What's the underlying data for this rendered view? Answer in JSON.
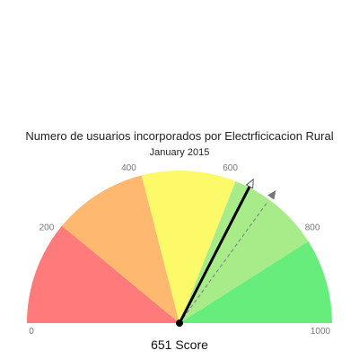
{
  "chart_data": {
    "type": "gauge",
    "title": "Numero de usuarios incorporados por Electrficicacion Rural",
    "subtitle": "January 2015",
    "min": 0,
    "max": 1000,
    "value": 651,
    "value_label": "651 Score",
    "target": 700,
    "tick_labels": [
      {
        "value": 0,
        "label": "0"
      },
      {
        "value": 200,
        "label": "200"
      },
      {
        "value": 400,
        "label": "400"
      },
      {
        "value": 600,
        "label": "600"
      },
      {
        "value": 800,
        "label": "800"
      },
      {
        "value": 1000,
        "label": "1000"
      }
    ],
    "bands": [
      {
        "from": 0,
        "to": 220,
        "color": "#ff7b7b"
      },
      {
        "from": 220,
        "to": 420,
        "color": "#ffb870"
      },
      {
        "from": 420,
        "to": 620,
        "color": "#fdfa6a"
      },
      {
        "from": 620,
        "to": 820,
        "color": "#a8ec8a"
      },
      {
        "from": 820,
        "to": 1000,
        "color": "#66ed7c"
      }
    ],
    "colors": {
      "needle": "#000000",
      "target_line": "#888888",
      "target_marker": "#777777",
      "value_marker_fill": "#ffffff",
      "value_marker_stroke": "#555555"
    }
  }
}
